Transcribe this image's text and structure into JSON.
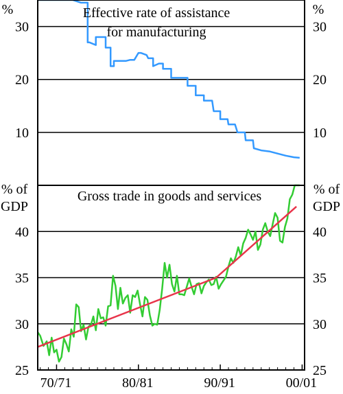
{
  "chart_data": [
    {
      "type": "line",
      "title_lines": [
        "Effective rate of assistance",
        "for manufacturing"
      ],
      "unit_left": "%",
      "unit_right": "%",
      "ylim": [
        0,
        35
      ],
      "yticks": [
        10,
        20,
        30
      ],
      "grid": true,
      "series": [
        {
          "color": "#3399ff",
          "x": [
            1968.7,
            1973.0,
            1974.0,
            1974.8,
            1974.8,
            1975.0,
            1975.8,
            1975.8,
            1977.0,
            1977.0,
            1977.6,
            1977.6,
            1978.0,
            1978.0,
            1979.0,
            1979.5,
            1980.0,
            1980.5,
            1981.0,
            1981.3,
            1982.0,
            1982.2,
            1982.8,
            1982.8,
            1983.5,
            1984.0,
            1984.0,
            1985.0,
            1985.0,
            1986.8,
            1987.0,
            1987.0,
            1987.8,
            1988.0,
            1988.0,
            1989.0,
            1989.0,
            1990.0,
            1990.2,
            1991.0,
            1991.0,
            1991.9,
            1992.0,
            1992.8,
            1993.1,
            1994.0,
            1994.1,
            1995.0,
            1995.1,
            1996.0,
            1997.0,
            1998.0,
            1999.0,
            2000.0,
            2000.7
          ],
          "y": [
            35,
            35,
            34.5,
            34.5,
            27,
            27,
            26.5,
            28,
            28,
            26,
            26,
            22.5,
            22.5,
            23.5,
            23.5,
            23.5,
            23.7,
            23.7,
            25.0,
            25.0,
            24.6,
            24.0,
            24.0,
            22.5,
            23.0,
            23.0,
            22.0,
            22.0,
            20.3,
            20.3,
            20.3,
            18.8,
            18.8,
            18.8,
            17.0,
            17.0,
            16.0,
            16.0,
            14.0,
            14.0,
            12.5,
            12.5,
            11.5,
            11.5,
            10.0,
            10.0,
            8.5,
            8.5,
            7.0,
            6.6,
            6.4,
            6.0,
            5.6,
            5.3,
            5.2
          ]
        }
      ]
    },
    {
      "type": "line",
      "title": "Gross trade in goods and services",
      "unit_left": [
        "% of",
        "GDP"
      ],
      "unit_right": [
        "% of",
        "GDP"
      ],
      "ylim": [
        25,
        45
      ],
      "yticks": [
        25,
        30,
        35,
        40
      ],
      "x_categories": [
        "70/71",
        "80/81",
        "90/91",
        "00/01"
      ],
      "x_category_years": [
        1971,
        1981,
        1991,
        2001
      ],
      "grid": true,
      "series": [
        {
          "color": "#33cc33",
          "x": [
            1968.7,
            1969.0,
            1969.4,
            1969.8,
            1970.1,
            1970.4,
            1970.7,
            1971.0,
            1971.3,
            1971.6,
            1971.9,
            1972.2,
            1972.5,
            1972.8,
            1973.1,
            1973.4,
            1973.7,
            1974.0,
            1974.3,
            1974.6,
            1974.9,
            1975.2,
            1975.5,
            1975.8,
            1976.1,
            1976.4,
            1976.7,
            1977.0,
            1977.3,
            1977.6,
            1977.9,
            1978.2,
            1978.5,
            1978.8,
            1979.1,
            1979.4,
            1979.7,
            1980.0,
            1980.3,
            1980.6,
            1980.9,
            1981.2,
            1981.5,
            1981.8,
            1982.1,
            1982.4,
            1982.7,
            1983.0,
            1983.3,
            1983.6,
            1983.9,
            1984.2,
            1984.5,
            1984.8,
            1985.1,
            1985.4,
            1985.7,
            1986.0,
            1986.3,
            1986.6,
            1986.9,
            1987.2,
            1987.5,
            1987.8,
            1988.1,
            1988.4,
            1988.7,
            1989.0,
            1989.3,
            1989.6,
            1989.9,
            1990.2,
            1990.5,
            1990.8,
            1991.1,
            1991.4,
            1991.7,
            1992.0,
            1992.3,
            1992.6,
            1992.9,
            1993.2,
            1993.5,
            1993.8,
            1994.1,
            1994.4,
            1994.7,
            1995.0,
            1995.3,
            1995.6,
            1995.9,
            1996.2,
            1996.5,
            1996.8,
            1997.1,
            1997.4,
            1997.7,
            1998.0,
            1998.3,
            1998.6,
            1998.9,
            1999.2,
            1999.5,
            1999.8,
            2000.1,
            2000.4,
            2000.7
          ],
          "y": [
            29.1,
            28.7,
            27.6,
            28.1,
            26.6,
            28.5,
            26.9,
            27.2,
            25.9,
            26.4,
            28.4,
            27.8,
            27.0,
            29.4,
            28.6,
            32.1,
            31.8,
            29.2,
            29.9,
            28.3,
            29.7,
            29.9,
            30.8,
            29.3,
            31.6,
            30.6,
            30.7,
            29.8,
            31.9,
            32.0,
            35.2,
            34.1,
            31.6,
            33.9,
            32.2,
            32.8,
            33.1,
            31.2,
            33.1,
            32.9,
            33.6,
            32.1,
            30.8,
            32.9,
            32.6,
            30.9,
            29.8,
            30.0,
            29.9,
            31.5,
            33.8,
            36.6,
            35.0,
            36.4,
            34.3,
            33.5,
            35.2,
            33.2,
            33.2,
            33.1,
            34.0,
            34.9,
            34.0,
            33.2,
            34.3,
            34.4,
            33.3,
            34.1,
            34.5,
            34.8,
            34.2,
            34.3,
            35.1,
            33.8,
            34.3,
            34.7,
            35.1,
            36.2,
            37.1,
            36.6,
            37.3,
            38.3,
            37.4,
            38.7,
            39.3,
            40.2,
            39.7,
            39.1,
            40.0,
            38.0,
            38.6,
            40.2,
            40.9,
            40.0,
            39.5,
            40.8,
            42.0,
            41.5,
            39.0,
            38.8,
            40.5,
            41.4,
            43.5,
            44.0,
            45.0,
            45.0,
            45.0
          ]
        },
        {
          "color": "#e8344a",
          "x": [
            1968.7,
            1990.5,
            2000.3
          ],
          "y": [
            27.5,
            35.0,
            42.7
          ]
        }
      ]
    }
  ]
}
